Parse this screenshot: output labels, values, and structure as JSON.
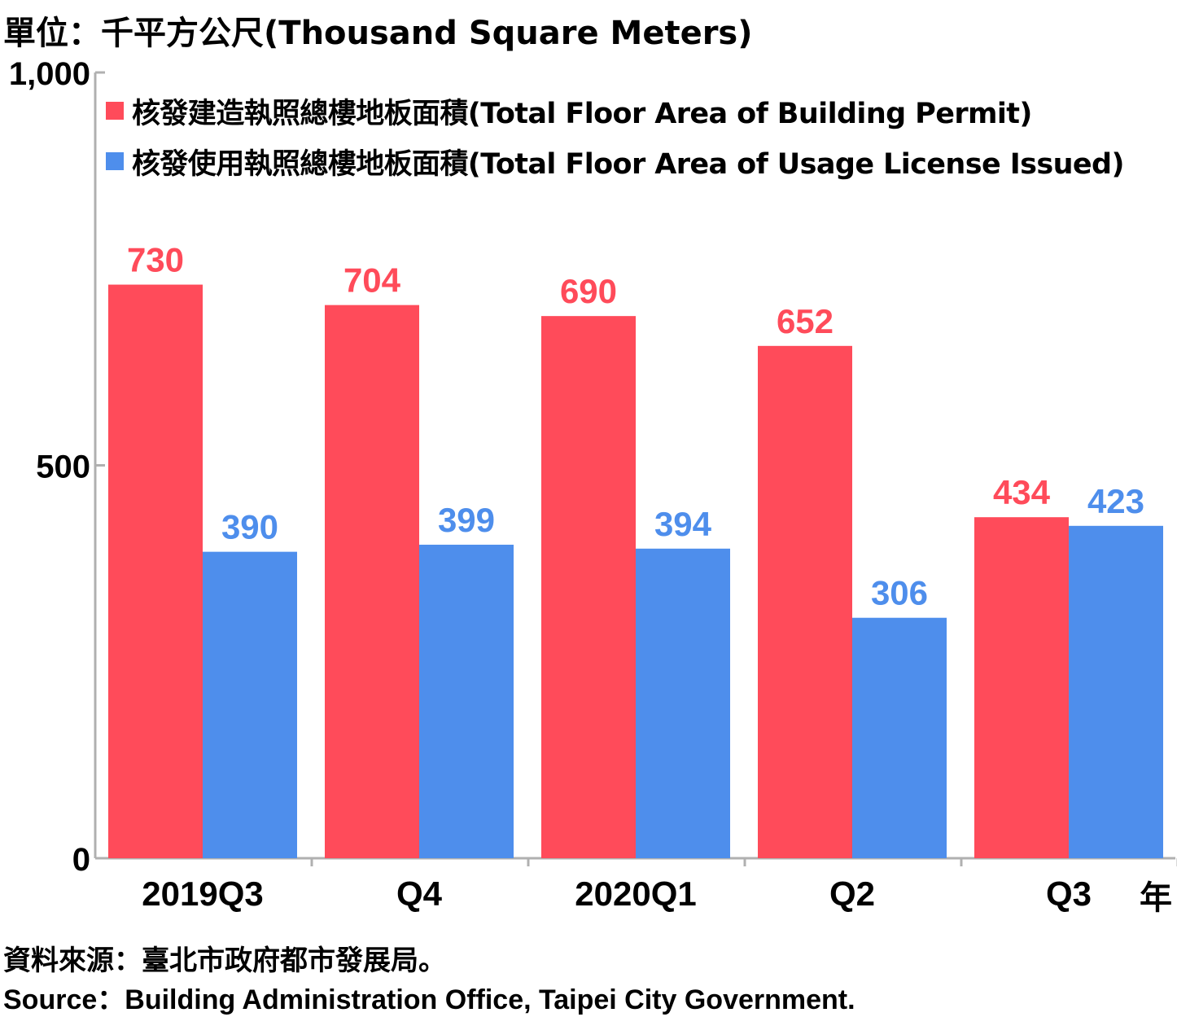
{
  "unit_label": "單位：千平方公尺(Thousand Square Meters)",
  "year_label": "年",
  "source": {
    "zh": "資料來源：臺北市政府都市發展局。",
    "en": "Source：Building Administration Office, Taipei City Government."
  },
  "colors": {
    "permit": "#FF4B5A",
    "license": "#4E8EEC",
    "axis": "#B0B0B0"
  },
  "chart_data": {
    "type": "bar",
    "categories": [
      "2019Q3",
      "Q4",
      "2020Q1",
      "Q2",
      "Q3"
    ],
    "series": [
      {
        "name": "核發建造執照總樓地板面積(Total Floor Area of Building Permit)",
        "values": [
          730,
          704,
          690,
          652,
          434
        ]
      },
      {
        "name": "核發使用執照總樓地板面積(Total Floor Area of Usage License Issued)",
        "values": [
          390,
          399,
          394,
          306,
          423
        ]
      }
    ],
    "y_ticks": [
      "0",
      "500",
      "1,000"
    ],
    "ylim": [
      0,
      1000
    ],
    "legend_position": "top-left",
    "grid": false
  }
}
